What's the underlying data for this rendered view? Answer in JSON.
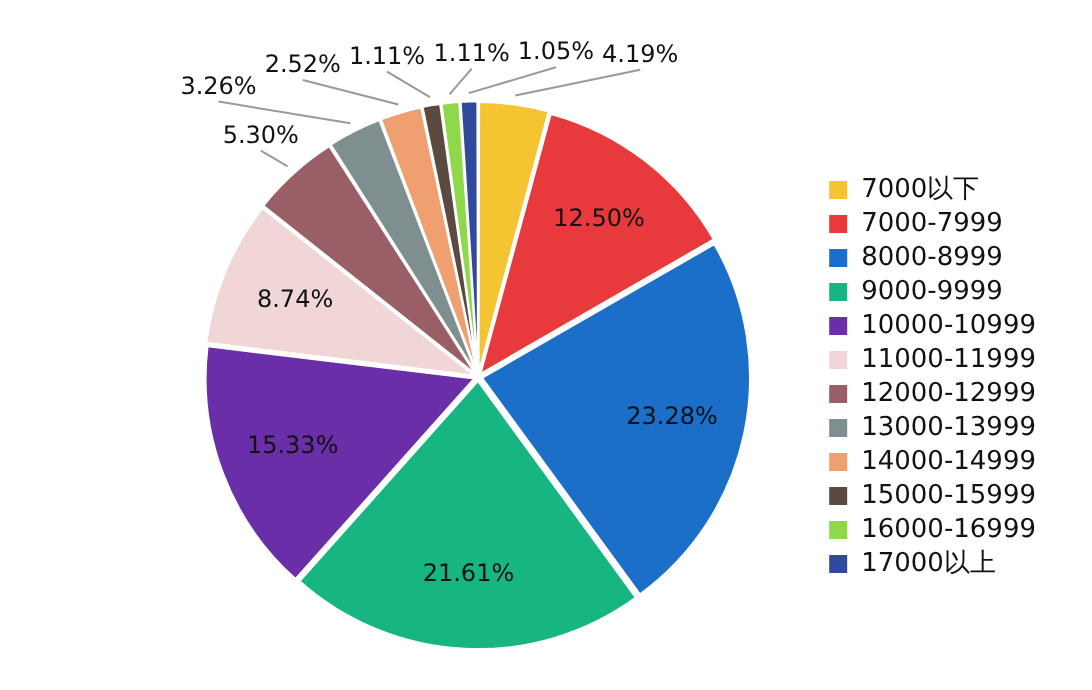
{
  "chart_data": {
    "type": "pie",
    "categories": [
      "7000以下",
      "7000-7999",
      "8000-8999",
      "9000-9999",
      "10000-10999",
      "11000-11999",
      "12000-12999",
      "13000-13999",
      "14000-14999",
      "15000-15999",
      "16000-16999",
      "17000以上"
    ],
    "values": [
      4.19,
      12.5,
      23.28,
      21.61,
      15.33,
      8.74,
      5.3,
      3.26,
      2.52,
      1.11,
      1.11,
      1.05
    ],
    "colors": [
      "#f5c431",
      "#e8393c",
      "#1b6fc8",
      "#17b582",
      "#6a2fa8",
      "#f0d6d6",
      "#9a5e66",
      "#7f8f8f",
      "#f0a070",
      "#5a4a40",
      "#8ed84a",
      "#2f4a9a"
    ],
    "value_labels": [
      "4.19%",
      "12.50%",
      "23.28%",
      "21.61%",
      "15.33%",
      "8.74%",
      "5.30%",
      "3.26%",
      "2.52%",
      "1.11%",
      "1.11%",
      "1.05%"
    ],
    "legend": "right"
  }
}
